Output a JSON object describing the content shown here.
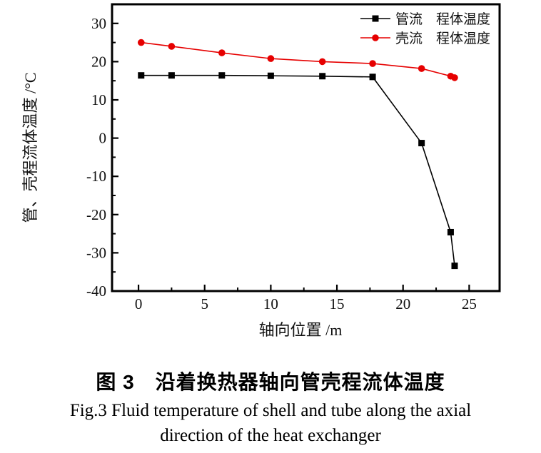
{
  "figure": {
    "caption_zh": "图 3　沿着换热器轴向管壳程流体温度",
    "caption_en_line1": "Fig.3  Fluid temperature of shell and tube along the axial",
    "caption_en_line2": "direction of the heat exchanger"
  },
  "colors": {
    "tube_series": "#000000",
    "shell_series": "#e60000",
    "axis": "#000000",
    "background": "#ffffff"
  },
  "chart_data": {
    "type": "line",
    "title": "",
    "xlabel": "轴向位置 /m",
    "ylabel": "管、壳程流体温度 /°C",
    "xlim": [
      -2,
      27.3
    ],
    "ylim": [
      -40,
      35
    ],
    "x_major_ticks": [
      0,
      5,
      10,
      15,
      20,
      25
    ],
    "x_minor_ticks": [
      2.5,
      7.5,
      12.5,
      17.5,
      22.5
    ],
    "y_major_ticks": [
      30,
      20,
      10,
      0,
      -10,
      -20,
      -30,
      -40
    ],
    "y_minor_ticks": [
      25,
      15,
      5,
      -5,
      -15,
      -25,
      -35
    ],
    "grid": false,
    "legend_position": "top-right-inside",
    "x": [
      0.2,
      2.5,
      6.3,
      10.0,
      13.9,
      17.7,
      21.4,
      23.6,
      23.9
    ],
    "series": [
      {
        "name": "管流　程体温度",
        "marker": "square",
        "color": "#000000",
        "values": [
          16.4,
          16.4,
          16.4,
          16.3,
          16.2,
          16.0,
          -1.3,
          -24.6,
          -33.4
        ]
      },
      {
        "name": "壳流　程体温度",
        "marker": "circle",
        "color": "#e60000",
        "values": [
          25.0,
          24.0,
          22.3,
          20.8,
          20.0,
          19.5,
          18.2,
          16.2,
          15.8
        ]
      }
    ]
  }
}
